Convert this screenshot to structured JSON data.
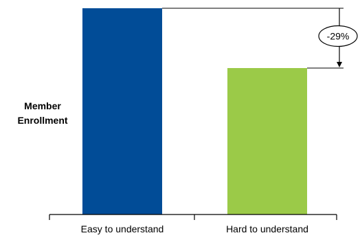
{
  "chart_data": {
    "type": "bar",
    "categories": [
      "Easy to understand",
      "Hard to understand"
    ],
    "values": [
      100,
      71
    ],
    "colors": [
      "#014C97",
      "#9BCA48"
    ],
    "title": "",
    "xlabel": "",
    "ylabel": "Member Enrollment",
    "ylabel_lines": [
      "Member",
      "Enrollment"
    ],
    "ylim": [
      0,
      100
    ],
    "grid": false,
    "legend": "none",
    "annotation": {
      "text": "-29%",
      "from_category": "Easy to understand",
      "to_category": "Hard to understand"
    }
  }
}
